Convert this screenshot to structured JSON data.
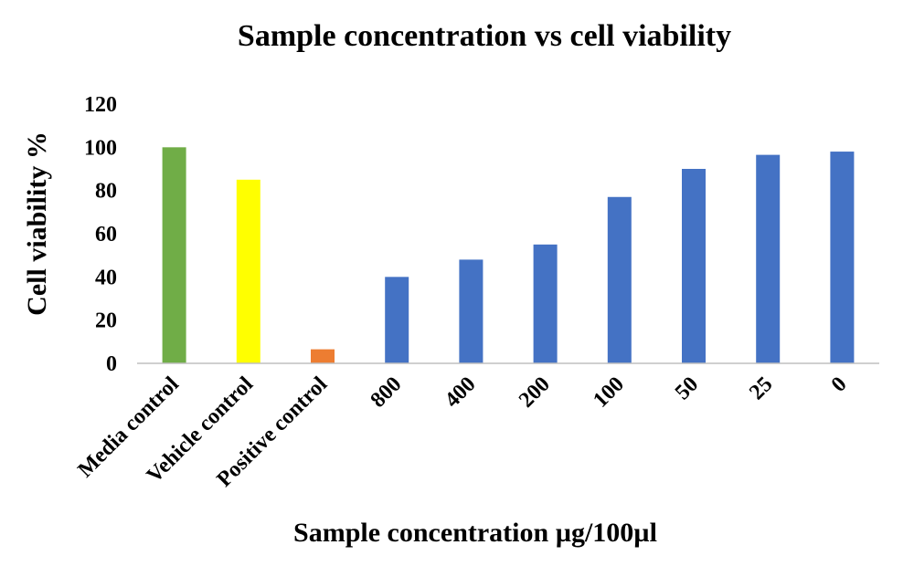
{
  "chart_data": {
    "type": "bar",
    "title": "Sample concentration vs cell viability",
    "xlabel": "Sample concentration µg/100µl",
    "ylabel": "Cell viability %",
    "categories": [
      "Media control",
      "Vehicle control",
      "Positive control",
      "800",
      "400",
      "200",
      "100",
      "50",
      "25",
      "0"
    ],
    "values": [
      100,
      85,
      6.5,
      40,
      48,
      55,
      77,
      90,
      96.5,
      98
    ],
    "bar_colors": [
      "#70AD47",
      "#FFFF00",
      "#ED7D31",
      "#4472C4",
      "#4472C4",
      "#4472C4",
      "#4472C4",
      "#4472C4",
      "#4472C4",
      "#4472C4"
    ],
    "ylim": [
      0,
      120
    ],
    "yticks": [
      0,
      20,
      40,
      60,
      80,
      100,
      120
    ],
    "grid": false,
    "legend": "none"
  }
}
